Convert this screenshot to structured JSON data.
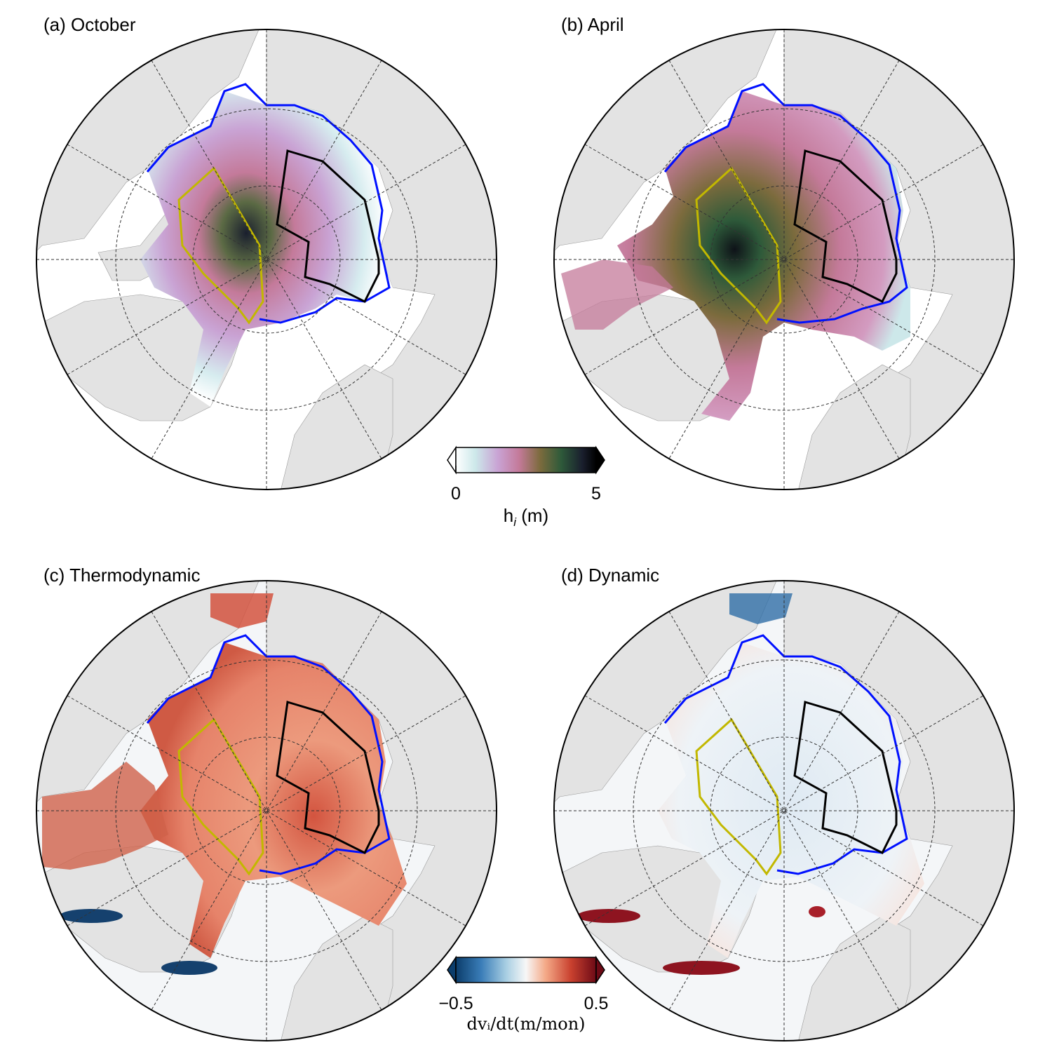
{
  "panels": [
    {
      "id": "a",
      "title": "(a) October"
    },
    {
      "id": "b",
      "title": "(b) April"
    },
    {
      "id": "c",
      "title": "(c) Thermodynamic"
    },
    {
      "id": "d",
      "title": "(d) Dynamic"
    }
  ],
  "colorbar_thickness": {
    "min_label": "0",
    "max_label": "5",
    "label": "h",
    "label_sub": "i",
    "label_unit": " (m)",
    "range": [
      0,
      5
    ],
    "extend": "both",
    "colors": [
      "#ffffff",
      "#cce8ea",
      "#c9a3d4",
      "#c47a9a",
      "#7c6b3d",
      "#2e5a3a",
      "#1a1f2e",
      "#000000"
    ]
  },
  "colorbar_tendency": {
    "min_label": "−0.5",
    "max_label": "0.5",
    "label": "dvᵢ/dt(m/mon)",
    "range": [
      -0.5,
      0.5
    ],
    "extend": "both",
    "colors": [
      "#0b3d6b",
      "#3a7db8",
      "#a9cfe3",
      "#f7f7f7",
      "#f4a987",
      "#c9412f",
      "#6d0a16"
    ]
  },
  "colors": {
    "land": "#e3e3e3",
    "ocean_background": "#ffffff",
    "ice_edge": "#0010ff",
    "region_black": "#000000",
    "region_yellow": "#c2b800"
  }
}
